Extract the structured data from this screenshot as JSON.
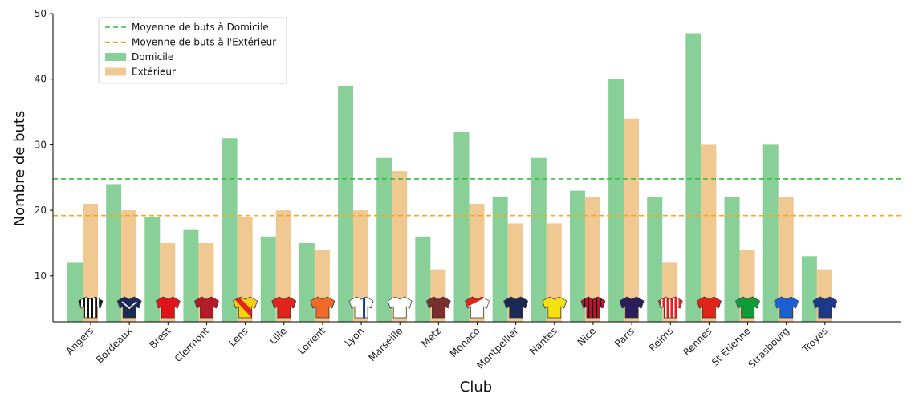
{
  "chart_data": {
    "type": "bar",
    "title": "",
    "xlabel": "Club",
    "ylabel": "Nombre de buts",
    "ylim": [
      3,
      50
    ],
    "yticks": [
      10,
      20,
      30,
      40,
      50
    ],
    "grid": false,
    "categories": [
      "Angers",
      "Bordeaux",
      "Brest",
      "Clermont",
      "Lens",
      "Lille",
      "Lorient",
      "Lyon",
      "Marseille",
      "Metz",
      "Monaco",
      "Montpellier",
      "Nantes",
      "Nice",
      "Paris",
      "Reims",
      "Rennes",
      "St Etienne",
      "Strasbourg",
      "Troyes"
    ],
    "series": [
      {
        "name": "Domicile",
        "color": "#88cf98",
        "values": [
          12,
          24,
          19,
          17,
          31,
          16,
          15,
          39,
          28,
          16,
          32,
          22,
          28,
          23,
          40,
          22,
          47,
          22,
          30,
          13
        ]
      },
      {
        "name": "Extérieur",
        "color": "#f0c992",
        "values": [
          21,
          20,
          15,
          15,
          19,
          20,
          14,
          20,
          26,
          11,
          21,
          18,
          18,
          22,
          34,
          12,
          30,
          14,
          22,
          11
        ]
      }
    ],
    "reference_lines": [
      {
        "name": "Moyenne de buts à Domicile",
        "value": 24.8,
        "color": "#2fbf3c",
        "style": "dashed"
      },
      {
        "name": "Moyenne de buts à l'Extérieur",
        "value": 19.2,
        "color": "#f5a623",
        "style": "dashed"
      }
    ],
    "legend": {
      "placement": "top-left",
      "entries": [
        "Moyenne de buts à Domicile",
        "Moyenne de buts à l'Extérieur",
        "Domicile",
        "Extérieur"
      ]
    },
    "jerseys": [
      {
        "club": "Angers",
        "body": "#111111",
        "stripe": "#ffffff",
        "pattern": "vstripes"
      },
      {
        "club": "Bordeaux",
        "body": "#1b2a55",
        "stripe": "#ffffff",
        "pattern": "chevron"
      },
      {
        "club": "Brest",
        "body": "#e1141b",
        "stripe": "#ffffff",
        "pattern": "plain"
      },
      {
        "club": "Clermont",
        "body": "#b31b2b",
        "stripe": "#1b2a55",
        "pattern": "plain"
      },
      {
        "club": "Lens",
        "body": "#f5d10f",
        "stripe": "#e2231a",
        "pattern": "sash"
      },
      {
        "club": "Lille",
        "body": "#e2231a",
        "stripe": "#1b2a55",
        "pattern": "plain"
      },
      {
        "club": "Lorient",
        "body": "#f26a2b",
        "stripe": "#111111",
        "pattern": "plain"
      },
      {
        "club": "Lyon",
        "body": "#ffffff",
        "stripe": "#1b3a8a",
        "pattern": "centerstripe"
      },
      {
        "club": "Marseille",
        "body": "#ffffff",
        "stripe": "#4fb3e8",
        "pattern": "plain"
      },
      {
        "club": "Metz",
        "body": "#7a2e2e",
        "stripe": "#ffffff",
        "pattern": "plain"
      },
      {
        "club": "Monaco",
        "body": "#e2231a",
        "stripe": "#ffffff",
        "pattern": "diagonal"
      },
      {
        "club": "Montpellier",
        "body": "#1b2a55",
        "stripe": "#f26a2b",
        "pattern": "plain"
      },
      {
        "club": "Nantes",
        "body": "#f5e10f",
        "stripe": "#2e8b3a",
        "pattern": "plain"
      },
      {
        "club": "Nice",
        "body": "#c8102e",
        "stripe": "#111111",
        "pattern": "vstripes"
      },
      {
        "club": "Paris",
        "body": "#2a1f5c",
        "stripe": "#e2231a",
        "pattern": "plain"
      },
      {
        "club": "Reims",
        "body": "#e2231a",
        "stripe": "#ffffff",
        "pattern": "vstripes"
      },
      {
        "club": "Rennes",
        "body": "#e2231a",
        "stripe": "#111111",
        "pattern": "plain"
      },
      {
        "club": "St Etienne",
        "body": "#0f9b3a",
        "stripe": "#ffffff",
        "pattern": "plain"
      },
      {
        "club": "Strasbourg",
        "body": "#1a5fd6",
        "stripe": "#ffffff",
        "pattern": "plain"
      },
      {
        "club": "Troyes",
        "body": "#1b3a8a",
        "stripe": "#ffffff",
        "pattern": "plain"
      }
    ]
  }
}
